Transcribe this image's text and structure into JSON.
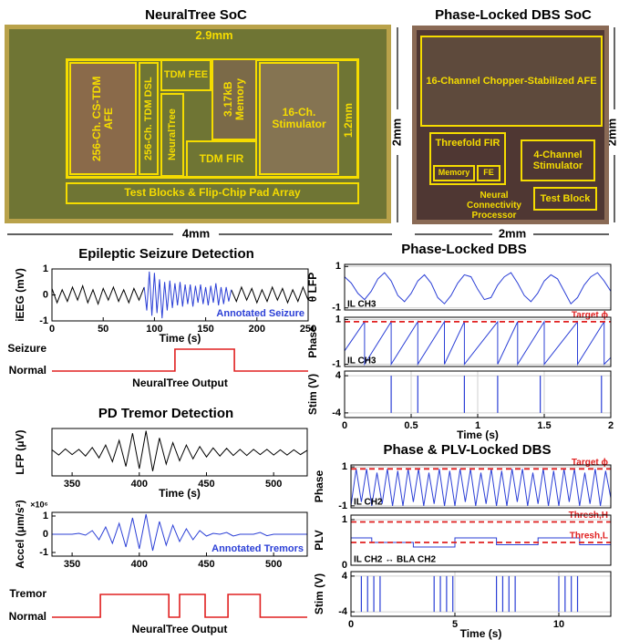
{
  "socs": [
    {
      "title": "NeuralTree SoC",
      "width": "4mm",
      "height": "2mm",
      "blocks": [
        "2.9mm",
        "256-Ch. CS-TDM AFE",
        "256-Ch. TDM DSL",
        "TDM FEE",
        "NeuralTree",
        "3.17kB Memory",
        "TDM FIR",
        "16-Ch. Stimulator",
        "1.2mm",
        "Test Blocks & Flip-Chip Pad Array"
      ]
    },
    {
      "title": "Phase-Locked DBS SoC",
      "width": "2mm",
      "height": "2mm",
      "blocks": [
        "16-Channel Chopper-Stabilized AFE",
        "Threefold FIR",
        "Memory",
        "FE",
        "4-Channel Stimulator",
        "Neural Connectivity Processor",
        "Test Block"
      ]
    }
  ],
  "chart_data": [
    {
      "type": "line",
      "title": "Epileptic Seizure Detection",
      "ylabel": "iEEG (mV)",
      "xlabel": "Time (s)",
      "xlim": [
        0,
        250
      ],
      "ylim": [
        -1,
        1
      ],
      "xticks": [
        0,
        50,
        100,
        150,
        200,
        250
      ],
      "yticks": [
        -1,
        0,
        1
      ],
      "series": [
        {
          "color": "#000000",
          "x": [
            0,
            5,
            10,
            15,
            20,
            25,
            30,
            35,
            40,
            45,
            50,
            55,
            60,
            65,
            70,
            75,
            80,
            85,
            90,
            91,
            175,
            180,
            185,
            190,
            195,
            200,
            205,
            210,
            215,
            220,
            225,
            230,
            235,
            240,
            245,
            250
          ],
          "values": [
            0.25,
            -0.3,
            0.2,
            -0.25,
            0.3,
            -0.2,
            0.35,
            -0.3,
            0.2,
            -0.35,
            0.25,
            -0.2,
            0.3,
            -0.25,
            0.2,
            -0.3,
            0.25,
            -0.2,
            0.3,
            null,
            0.2,
            -0.25,
            0.3,
            -0.2,
            0.25,
            -0.3,
            0.2,
            -0.25,
            0.3,
            -0.2,
            0.25,
            -0.3,
            0.2,
            -0.25,
            0.3,
            -0.2
          ]
        },
        {
          "name": "Annotated Seizure",
          "color": "#2b3fd6",
          "x": [
            90,
            92.5,
            95,
            97.5,
            100,
            102.5,
            105,
            107.5,
            110,
            112.5,
            115,
            117.5,
            120,
            122.5,
            125,
            127.5,
            130,
            132.5,
            135,
            137.5,
            140,
            142.5,
            145,
            147.5,
            150,
            152.5,
            155,
            157.5,
            160,
            162.5,
            165,
            167.5,
            170,
            172.5,
            175
          ],
          "values": [
            0.3,
            -0.6,
            0.9,
            -0.8,
            0.85,
            -0.7,
            0.6,
            -0.9,
            0.5,
            -0.6,
            0.55,
            -0.5,
            0.45,
            -0.4,
            0.5,
            -0.45,
            0.4,
            -0.35,
            0.4,
            -0.45,
            0.35,
            -0.3,
            0.4,
            -0.35,
            0.3,
            -0.4,
            0.35,
            -0.3,
            0.45,
            -0.4,
            0.3,
            -0.35,
            0.3,
            -0.25,
            0.2
          ]
        }
      ]
    },
    {
      "type": "line",
      "axes": false,
      "xlabel": "NeuralTree Output",
      "xlim": [
        0,
        250
      ],
      "ylim": [
        0,
        1
      ],
      "yticks": [
        {
          "value": 1,
          "label": "Seizure"
        },
        {
          "value": 0,
          "label": "Normal"
        }
      ],
      "series": [
        {
          "color": "#e02020",
          "x": [
            0,
            120,
            120,
            178,
            178,
            250
          ],
          "values": [
            0,
            0,
            1,
            1,
            0,
            0
          ]
        }
      ]
    },
    {
      "type": "line",
      "title": "PD Tremor Detection",
      "ylabel": "LFP (μV)",
      "xlabel": "Time (s)",
      "xlim": [
        335,
        525
      ],
      "ylim": [
        -50,
        50
      ],
      "xticks": [
        350,
        400,
        450,
        500
      ],
      "yticks": [],
      "series": [
        {
          "color": "#000000",
          "x": [
            335,
            340,
            345,
            350,
            355,
            360,
            365,
            370,
            375,
            380,
            385,
            390,
            395,
            400,
            405,
            410,
            415,
            420,
            425,
            430,
            435,
            440,
            445,
            450,
            455,
            460,
            465,
            470,
            475,
            480,
            485,
            490,
            495,
            500,
            505,
            510,
            515,
            520,
            525
          ],
          "values": [
            5,
            -6,
            7,
            -5,
            6,
            -8,
            10,
            -12,
            15,
            -20,
            25,
            -30,
            40,
            -35,
            45,
            -40,
            30,
            -25,
            20,
            -18,
            15,
            -14,
            12,
            -10,
            9,
            -8,
            8,
            -7,
            6,
            -7,
            6,
            -5,
            6,
            -6,
            5,
            -6,
            5,
            -5,
            4
          ]
        }
      ]
    },
    {
      "type": "line",
      "ylabel": "Accel (μm/s²)",
      "y_multiplier": "×10⁶",
      "xlim": [
        335,
        525
      ],
      "ylim": [
        -1.2,
        1.2
      ],
      "xticks": [
        350,
        400,
        450,
        500
      ],
      "yticks": [
        -1,
        0,
        1
      ],
      "series": [
        {
          "name": "Annotated Tremors",
          "color": "#2b3fd6",
          "x": [
            335,
            340,
            345,
            350,
            355,
            360,
            365,
            370,
            375,
            380,
            385,
            390,
            395,
            400,
            405,
            410,
            415,
            420,
            425,
            430,
            435,
            440,
            445,
            450,
            455,
            460,
            465,
            470,
            475,
            480,
            485,
            490,
            495,
            500,
            505,
            510,
            515,
            520,
            525
          ],
          "values": [
            0,
            0,
            0,
            0,
            0.05,
            -0.05,
            0.2,
            -0.3,
            0.4,
            -0.5,
            0.6,
            -0.7,
            0.9,
            -0.8,
            1.1,
            -0.9,
            0.7,
            -0.6,
            0.5,
            -0.4,
            0.3,
            -0.3,
            0.2,
            -0.1,
            0.05,
            0,
            0.1,
            -0.1,
            0,
            0,
            0,
            0.1,
            -0.08,
            0,
            0,
            0,
            0,
            0,
            0
          ]
        }
      ]
    },
    {
      "type": "line",
      "axes": false,
      "xlabel": "NeuralTree Output",
      "xlim": [
        335,
        525
      ],
      "ylim": [
        0,
        1
      ],
      "yticks": [
        {
          "value": 1,
          "label": "Tremor"
        },
        {
          "value": 0,
          "label": "Normal"
        }
      ],
      "series": [
        {
          "color": "#e02020",
          "x": [
            335,
            371,
            371,
            422,
            422,
            430,
            430,
            449,
            449,
            466,
            466,
            490,
            490,
            525
          ],
          "values": [
            0,
            0,
            1,
            1,
            0,
            0,
            1,
            1,
            0,
            0,
            1,
            1,
            0,
            0
          ]
        }
      ]
    },
    {
      "type": "line",
      "title": "Phase-Locked DBS",
      "ylabel": "θ LFP",
      "note": "IL CH3",
      "grid": true,
      "xlim": [
        0,
        2
      ],
      "ylim": [
        -1.1,
        1.1
      ],
      "yticks": [
        -1,
        1
      ],
      "series": [
        {
          "color": "#2b3fd6",
          "x": [
            0,
            0.05,
            0.1,
            0.15,
            0.2,
            0.25,
            0.3,
            0.35,
            0.4,
            0.45,
            0.5,
            0.55,
            0.6,
            0.65,
            0.7,
            0.75,
            0.8,
            0.85,
            0.9,
            0.95,
            1,
            1.05,
            1.1,
            1.15,
            1.2,
            1.25,
            1.3,
            1.35,
            1.4,
            1.45,
            1.5,
            1.55,
            1.6,
            1.65,
            1.7,
            1.75,
            1.8,
            1.85,
            1.9,
            1.95,
            2
          ],
          "values": [
            0.5,
            0.2,
            -0.3,
            -0.6,
            -0.2,
            0.4,
            0.7,
            0.3,
            -0.4,
            -0.7,
            -0.3,
            0.3,
            0.6,
            0.2,
            -0.5,
            -0.8,
            -0.4,
            0.2,
            0.6,
            0.5,
            -0.1,
            -0.6,
            -0.5,
            0.1,
            0.5,
            0.7,
            0.2,
            -0.4,
            -0.7,
            -0.3,
            0.3,
            0.6,
            0.4,
            -0.2,
            -0.8,
            -0.5,
            0.1,
            0.5,
            0.7,
            0.3,
            -0.2
          ]
        }
      ]
    },
    {
      "type": "line",
      "ylabel": "Phase",
      "note": "IL CH3",
      "grid": true,
      "xlim": [
        0,
        2
      ],
      "ylim": [
        -1.1,
        1.1
      ],
      "yticks": [
        -1,
        1
      ],
      "series": [
        {
          "color": "#2b3fd6",
          "x": [
            0,
            0.15,
            0.15,
            0.35,
            0.35,
            0.55,
            0.55,
            0.75,
            0.75,
            0.9,
            0.9,
            1.15,
            1.15,
            1.3,
            1.3,
            1.5,
            1.5,
            1.75,
            1.75,
            1.95,
            1.95,
            2
          ],
          "values": [
            -0.4,
            0.9,
            -1,
            0.9,
            -1,
            0.9,
            -1,
            0.9,
            -1,
            0.9,
            -1,
            0.9,
            -1,
            0.9,
            -1,
            0.9,
            -1,
            0.9,
            -1,
            0.9,
            -1,
            -0.7
          ]
        },
        {
          "name": "Target ϕ",
          "color": "#e02020",
          "dashed": true,
          "x": [
            0,
            2
          ],
          "values": [
            0.9,
            0.9
          ]
        }
      ]
    },
    {
      "type": "pulse",
      "ylabel": "Stim (V)",
      "xlabel": "Time (s)",
      "grid": true,
      "xlim": [
        0,
        2
      ],
      "ylim": [
        -5,
        5
      ],
      "xticks": [
        0,
        0.5,
        1,
        1.5,
        2
      ],
      "yticks": [
        -4,
        4
      ],
      "series": [
        {
          "color": "#2b3fd6",
          "x": [
            0.35,
            0.55,
            0.9,
            1.15,
            1.47,
            1.93
          ],
          "values": [
            4,
            4,
            4,
            4,
            4,
            4
          ]
        }
      ]
    },
    {
      "type": "line",
      "title": "Phase & PLV-Locked DBS",
      "ylabel": "Phase",
      "note": "IL CH2",
      "grid": true,
      "xlim": [
        0,
        12.5
      ],
      "ylim": [
        -1.1,
        1.1
      ],
      "yticks": [
        -1,
        1
      ],
      "series": [
        {
          "color": "#2b3fd6",
          "x": [
            0,
            0.25,
            0.5,
            0.75,
            1,
            1.25,
            1.5,
            1.75,
            2,
            2.25,
            2.5,
            2.75,
            3,
            3.25,
            3.5,
            3.75,
            4,
            4.25,
            4.5,
            4.75,
            5,
            5.25,
            5.5,
            5.75,
            6,
            6.25,
            6.5,
            6.75,
            7,
            7.25,
            7.5,
            7.75,
            8,
            8.25,
            8.5,
            8.75,
            9,
            9.25,
            9.5,
            9.75,
            10,
            10.25,
            10.5,
            10.75,
            11,
            11.25,
            11.5,
            11.75,
            12,
            12.25,
            12.5
          ],
          "values": [
            -1,
            0.9,
            -0.8,
            0.9,
            -1,
            0.7,
            -0.9,
            0.9,
            -1,
            0.8,
            -1,
            0.9,
            -0.8,
            0.9,
            -1,
            0.7,
            -0.9,
            0.9,
            -1,
            0.8,
            -1,
            0.9,
            -0.8,
            0.9,
            -1,
            0.7,
            -0.9,
            0.9,
            -1,
            0.8,
            -1,
            0.9,
            -0.8,
            0.9,
            -1,
            0.7,
            -0.9,
            0.9,
            -1,
            0.8,
            -1,
            0.9,
            -0.8,
            0.9,
            -1,
            0.7,
            -0.9,
            0.9,
            -1,
            0.8,
            -0.6
          ]
        },
        {
          "name": "Target ϕ",
          "color": "#e02020",
          "dashed": true,
          "x": [
            0,
            12.5
          ],
          "values": [
            0.9,
            0.9
          ]
        }
      ]
    },
    {
      "type": "line",
      "ylabel": "PLV",
      "note": "IL CH2 ↔ BLA CH2",
      "grid": true,
      "xlim": [
        0,
        12.5
      ],
      "ylim": [
        0,
        1.1
      ],
      "yticks": [
        0,
        1
      ],
      "series": [
        {
          "color": "#2b3fd6",
          "x": [
            0,
            1,
            1,
            3,
            3,
            5,
            5,
            7,
            7,
            9,
            9,
            11,
            11,
            12.5
          ],
          "values": [
            0.6,
            0.6,
            0.5,
            0.5,
            0.4,
            0.4,
            0.6,
            0.6,
            0.45,
            0.45,
            0.6,
            0.6,
            0.45,
            0.45
          ]
        },
        {
          "name": "Thresh,H",
          "color": "#e02020",
          "dashed": true,
          "x": [
            0,
            12.5
          ],
          "values": [
            0.95,
            0.95
          ]
        },
        {
          "name": "Thresh,L",
          "color": "#e02020",
          "dashed": true,
          "x": [
            0,
            12.5
          ],
          "values": [
            0.5,
            0.5
          ]
        }
      ]
    },
    {
      "type": "pulse",
      "ylabel": "Stim (V)",
      "xlabel": "Time (s)",
      "grid": true,
      "xlim": [
        0,
        12.5
      ],
      "ylim": [
        -5,
        5
      ],
      "xticks": [
        0,
        5,
        10
      ],
      "yticks": [
        -4,
        4
      ],
      "series": [
        {
          "color": "#2b3fd6",
          "x": [
            0.5,
            0.8,
            1.1,
            1.4,
            4,
            4.3,
            4.6,
            4.9,
            7,
            7.3,
            7.6,
            7.9,
            10,
            10.3,
            10.6,
            10.9
          ],
          "values": [
            4,
            4,
            4,
            4,
            4,
            4,
            4,
            4,
            4,
            4,
            4,
            4,
            4,
            4,
            4,
            4
          ]
        }
      ]
    }
  ]
}
